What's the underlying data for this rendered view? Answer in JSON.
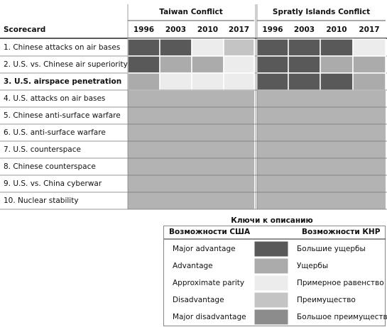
{
  "header": {
    "scorecard": "Scorecard",
    "groups": [
      {
        "title": "Taiwan Conflict",
        "years": [
          "1996",
          "2003",
          "2010",
          "2017"
        ]
      },
      {
        "title": "Spratly Islands Conflict",
        "years": [
          "1996",
          "2003",
          "2010",
          "2017"
        ]
      }
    ]
  },
  "empty_color": "#b3b3b3",
  "rows": [
    {
      "label": "1. Chinese attacks on air bases",
      "bold": false,
      "cells": [
        [
          "#595959",
          "#595959",
          "#ececec",
          "#c4c4c4"
        ],
        [
          "#595959",
          "#595959",
          "#595959",
          "#ececec"
        ]
      ]
    },
    {
      "label": "2. U.S. vs. Chinese air superiority",
      "bold": false,
      "cells": [
        [
          "#595959",
          "#ababab",
          "#ababab",
          "#ececec"
        ],
        [
          "#595959",
          "#595959",
          "#ababab",
          "#ababab"
        ]
      ]
    },
    {
      "label": "3. U.S. airspace penetration",
      "bold": true,
      "cells": [
        [
          "#ababab",
          "#ececec",
          "#ececec",
          "#ececec"
        ],
        [
          "#595959",
          "#595959",
          "#595959",
          "#ababab"
        ]
      ]
    },
    {
      "label": "4. U.S. attacks on air bases",
      "bold": false
    },
    {
      "label": "5. Chinese anti-surface warfare",
      "bold": false
    },
    {
      "label": "6. U.S. anti-surface warfare",
      "bold": false
    },
    {
      "label": "7. U.S. counterspace",
      "bold": false
    },
    {
      "label": "8. Chinese counterspace",
      "bold": false
    },
    {
      "label": "9. U.S. vs. China cyberwar",
      "bold": false
    },
    {
      "label": "10. Nuclear stability",
      "bold": false
    }
  ],
  "legend": {
    "title": "Ключи к описанию",
    "us_header": "Возможности США",
    "prc_header": "Возможности КНР",
    "items": [
      {
        "us": "Major advantage",
        "color": "#595959",
        "prc": "Большие ущербы"
      },
      {
        "us": "Advantage",
        "color": "#ababab",
        "prc": "Ущербы"
      },
      {
        "us": "Approximate parity",
        "color": "#ececec",
        "prc": "Примерное равенство"
      },
      {
        "us": "Disadvantage",
        "color": "#c4c4c4",
        "prc": "Преимущество"
      },
      {
        "us": "Major disadvantage",
        "color": "#8c8c8c",
        "prc": "Большое преимущество"
      }
    ]
  }
}
